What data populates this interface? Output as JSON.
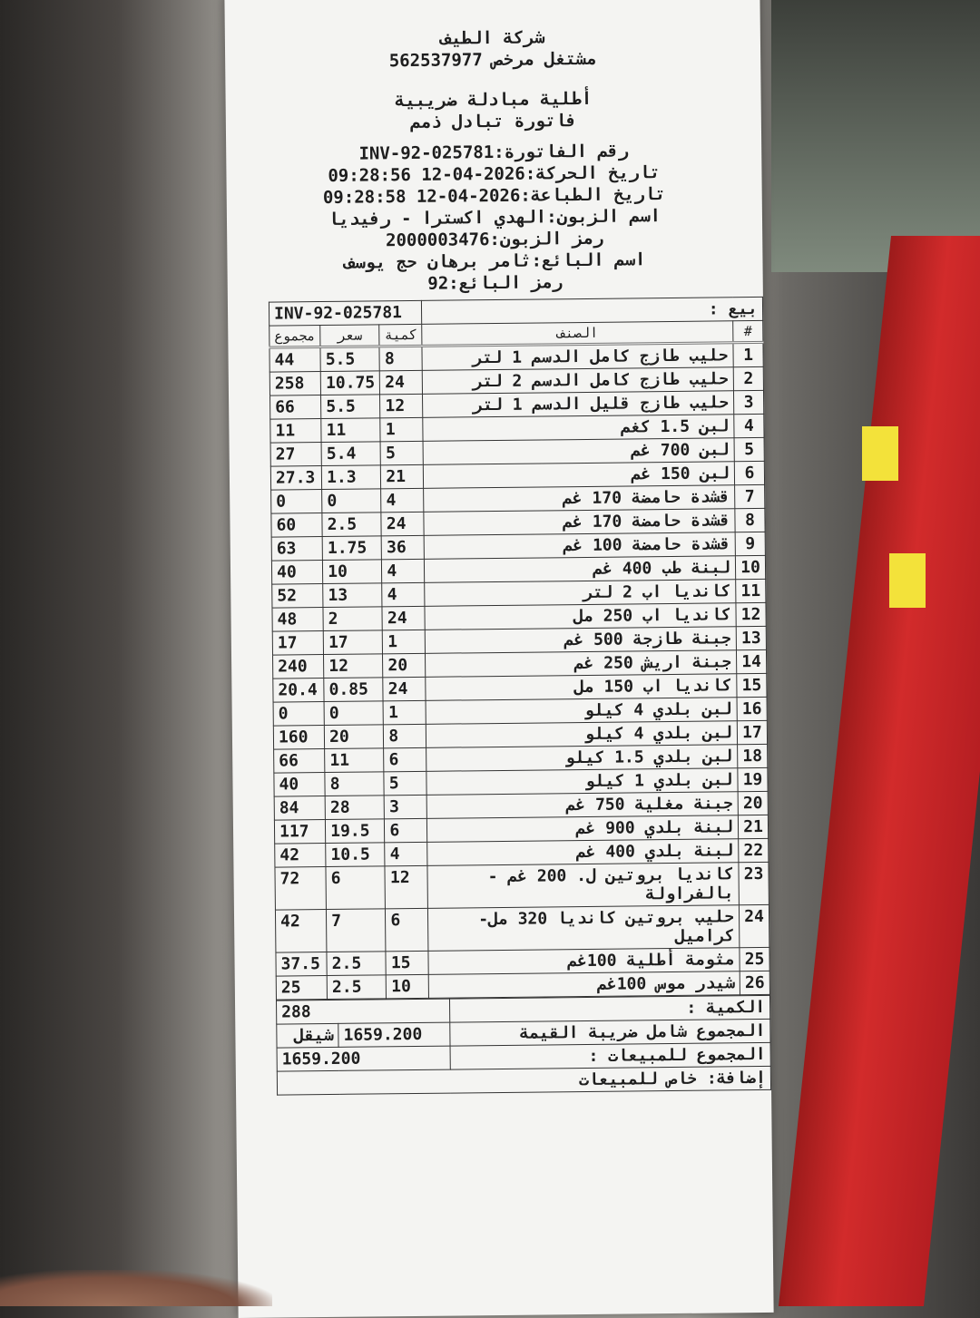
{
  "header": {
    "company": "شركة الطيف",
    "license": "مشتغل مرخص 562537977",
    "title1": "أطلية مبادلة ضريبية",
    "title2": "فاتورة تبادل ذمم"
  },
  "meta": {
    "invoice_no": "رقم الفاتورة:INV-92-025781",
    "move_date": "تاريخ الحركة:2026-04-12 09:28:56",
    "print_date": "تاريخ الطباعة:2026-04-12 09:28:58",
    "customer_name": "اسم الزبون:الهدي اكسترا - رفيديا",
    "customer_code": "رمز الزبون:2000003476",
    "seller_name": "اسم البائع:ثامر برهان حج يوسف",
    "seller_code": "رمز البائع:92"
  },
  "sale": {
    "label": "بيع :",
    "value": "INV-92-025781"
  },
  "columns": {
    "no": "#",
    "item": "الصنف",
    "qty": "كمية",
    "price": "سعر",
    "total": "مجموع"
  },
  "items": [
    {
      "no": "1",
      "name": "حليب طازج كامل الدسم 1 لتر",
      "qty": "8",
      "price": "5.5",
      "total": "44"
    },
    {
      "no": "2",
      "name": "حليب طازج كامل الدسم 2 لتر",
      "qty": "24",
      "price": "10.75",
      "total": "258"
    },
    {
      "no": "3",
      "name": "حليب طازج قليل الدسم 1 لتر",
      "qty": "12",
      "price": "5.5",
      "total": "66"
    },
    {
      "no": "4",
      "name": "لبن 1.5 كغم",
      "qty": "1",
      "price": "11",
      "total": "11"
    },
    {
      "no": "5",
      "name": "لبن 700 غم",
      "qty": "5",
      "price": "5.4",
      "total": "27"
    },
    {
      "no": "6",
      "name": "لبن 150 غم",
      "qty": "21",
      "price": "1.3",
      "total": "27.3"
    },
    {
      "no": "7",
      "name": "قشدة حامضة 170 غم",
      "qty": "4",
      "price": "0",
      "total": "0"
    },
    {
      "no": "8",
      "name": "قشدة حامضة 170 غم",
      "qty": "24",
      "price": "2.5",
      "total": "60"
    },
    {
      "no": "9",
      "name": "قشدة حامضة 100 غم",
      "qty": "36",
      "price": "1.75",
      "total": "63"
    },
    {
      "no": "10",
      "name": "لبنة طب 400 غم",
      "qty": "4",
      "price": "10",
      "total": "40"
    },
    {
      "no": "11",
      "name": "كانديا اب 2 لتر",
      "qty": "4",
      "price": "13",
      "total": "52"
    },
    {
      "no": "12",
      "name": "كانديا اب 250 مل",
      "qty": "24",
      "price": "2",
      "total": "48"
    },
    {
      "no": "13",
      "name": "جبنة طازجة 500 غم",
      "qty": "1",
      "price": "17",
      "total": "17"
    },
    {
      "no": "14",
      "name": "جبنة اريش 250 غم",
      "qty": "20",
      "price": "12",
      "total": "240"
    },
    {
      "no": "15",
      "name": "كانديا اب 150 مل",
      "qty": "24",
      "price": "0.85",
      "total": "20.4"
    },
    {
      "no": "16",
      "name": "لبن بلدي 4 كيلو",
      "qty": "1",
      "price": "0",
      "total": "0"
    },
    {
      "no": "17",
      "name": "لبن بلدي 4 كيلو",
      "qty": "8",
      "price": "20",
      "total": "160"
    },
    {
      "no": "18",
      "name": "لبن بلدي 1.5 كيلو",
      "qty": "6",
      "price": "11",
      "total": "66"
    },
    {
      "no": "19",
      "name": "لبن بلدي 1 كيلو",
      "qty": "5",
      "price": "8",
      "total": "40"
    },
    {
      "no": "20",
      "name": "جبنة مغلية 750 غم",
      "qty": "3",
      "price": "28",
      "total": "84"
    },
    {
      "no": "21",
      "name": "لبنة بلدي 900 غم",
      "qty": "6",
      "price": "19.5",
      "total": "117"
    },
    {
      "no": "22",
      "name": "لبنة بلدي 400 غم",
      "qty": "4",
      "price": "10.5",
      "total": "42"
    },
    {
      "no": "23",
      "name": "كانديا بروتين ل. 200 غم - بالفراولة",
      "qty": "12",
      "price": "6",
      "total": "72"
    },
    {
      "no": "24",
      "name": "حليب بروتين كانديا 320 مل- كراميل",
      "qty": "6",
      "price": "7",
      "total": "42"
    },
    {
      "no": "25",
      "name": "مثومة أطلية 100غم",
      "qty": "15",
      "price": "2.5",
      "total": "37.5"
    },
    {
      "no": "26",
      "name": "شيدر موس 100غم",
      "qty": "10",
      "price": "2.5",
      "total": "25"
    }
  ],
  "totals": {
    "qty_label": "الكمية :",
    "qty": "288",
    "gross_label": "المجموع شامل ضريبة القيمة",
    "gross": "1659.200",
    "currency": "شيقل",
    "net_label": "المجموع للمبيعات :",
    "net": "1659.200",
    "extra_label": "إضافة: خاص للمبيعات"
  }
}
